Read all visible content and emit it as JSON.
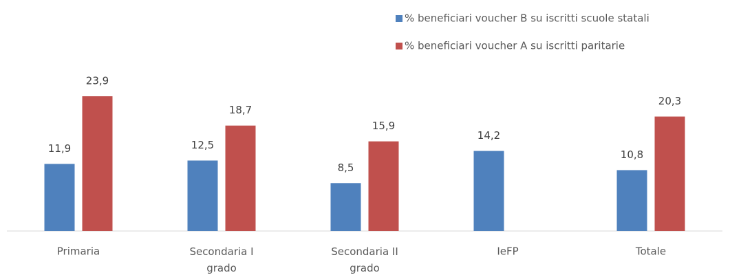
{
  "chart_data": {
    "type": "bar",
    "categories": [
      "Primaria",
      "Secondaria I grado",
      "Secondaria II grado",
      "IeFP",
      "Totale"
    ],
    "series": [
      {
        "name": "% beneficiari voucher B su iscritti scuole statali",
        "color": "#4f81bd",
        "values": [
          11.9,
          12.5,
          8.5,
          14.2,
          10.8
        ],
        "value_labels": [
          "11,9",
          "12,5",
          "8,5",
          "14,2",
          "10,8"
        ]
      },
      {
        "name": "% beneficiari voucher A su iscritti paritarie",
        "color": "#c0504d",
        "values": [
          23.9,
          18.7,
          15.9,
          null,
          20.3
        ],
        "value_labels": [
          "23,9",
          "18,7",
          "15,9",
          null,
          "20,3"
        ]
      }
    ],
    "ylim": [
      0,
      25
    ],
    "legend": "top-right"
  }
}
